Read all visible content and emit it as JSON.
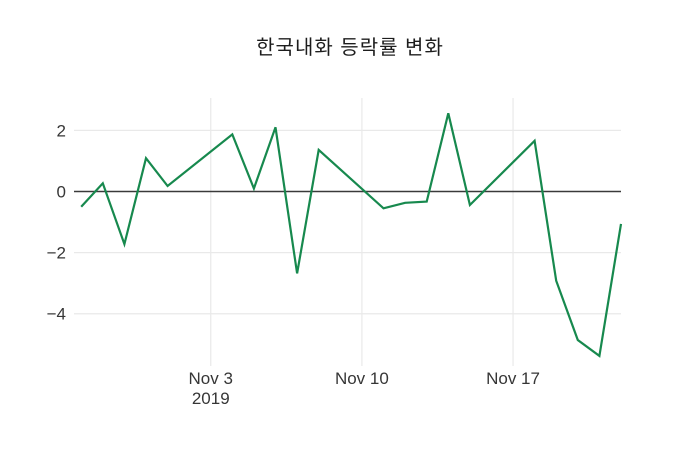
{
  "chart_data": {
    "type": "line",
    "title": "한국내화 등락률 변화",
    "xlabel": "",
    "ylabel": "",
    "grid": true,
    "zeroline": true,
    "legend": "none",
    "x": [
      "2019-10-28",
      "2019-10-29",
      "2019-10-30",
      "2019-10-31",
      "2019-11-01",
      "2019-11-04",
      "2019-11-05",
      "2019-11-06",
      "2019-11-07",
      "2019-11-08",
      "2019-11-11",
      "2019-11-12",
      "2019-11-13",
      "2019-11-14",
      "2019-11-15",
      "2019-11-18",
      "2019-11-19",
      "2019-11-20",
      "2019-11-21",
      "2019-11-22"
    ],
    "series": [
      {
        "name": "등락률",
        "color": "#17894e",
        "values": [
          -0.5,
          0.27,
          -1.72,
          1.09,
          0.18,
          1.87,
          0.1,
          2.1,
          -2.68,
          1.36,
          -0.55,
          -0.37,
          -0.33,
          2.56,
          -0.44,
          1.66,
          -2.92,
          -4.86,
          -5.38,
          -1.06
        ]
      }
    ],
    "x_ticks": [
      {
        "at": "2019-11-03",
        "label": "Nov 3",
        "sublabel": "2019"
      },
      {
        "at": "2019-11-10",
        "label": "Nov 10"
      },
      {
        "at": "2019-11-17",
        "label": "Nov 17"
      }
    ],
    "y_ticks": [
      {
        "value": 2,
        "label": "2"
      },
      {
        "value": 0,
        "label": "0"
      },
      {
        "value": -2,
        "label": "−2"
      },
      {
        "value": -4,
        "label": "−4"
      }
    ],
    "xlim": [
      "2019-10-27T16",
      "2019-11-22T00"
    ],
    "ylim": [
      -5.71,
      3.06
    ],
    "colors": {
      "line": "#17894e",
      "grid": "#e9e9e9",
      "zeroline": "#3a3a3a",
      "tick_text": "#363636",
      "title_text": "#1d1d1d"
    }
  }
}
